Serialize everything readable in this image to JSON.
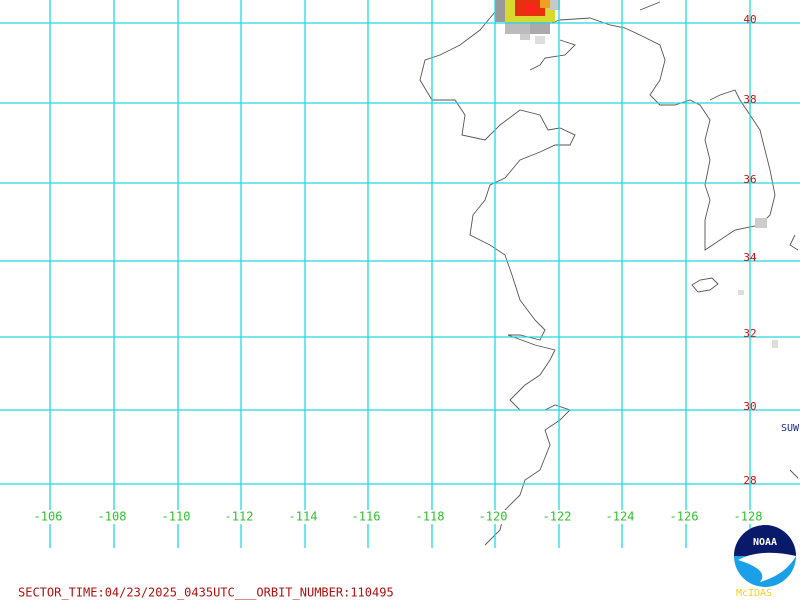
{
  "map": {
    "latitude_labels": [
      "40",
      "38",
      "36",
      "34",
      "32",
      "30",
      "28"
    ],
    "longitude_labels": [
      "-106",
      "-108",
      "-110",
      "-112",
      "-114",
      "-116",
      "-118",
      "-120",
      "-122",
      "-124",
      "-126",
      "-128"
    ],
    "station_label": "SUW"
  },
  "footer": {
    "sector_info": "SECTOR_TIME:04/23/2025_0435UTC___ORBIT_NUMBER:110495"
  },
  "logo": {
    "agency": "NOAA",
    "software": "McIDAS"
  }
}
